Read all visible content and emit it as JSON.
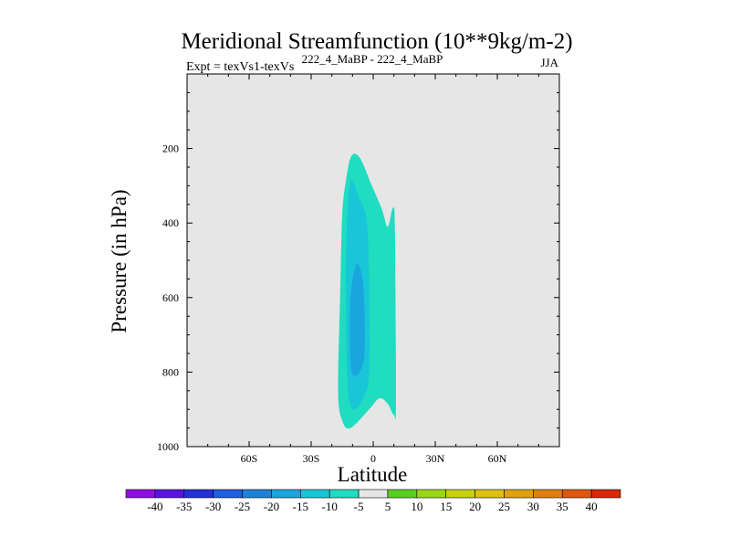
{
  "chart_data": {
    "type": "contour-filled",
    "title": "Meridional Streamfunction (10**9kg/m-2)",
    "subtitle_left": "Expt = texVs1-texVs",
    "subtitle_center": "222_4_MaBP - 222_4_MaBP",
    "season": "JJA",
    "xlabel": "Latitude",
    "ylabel": "Pressure (in hPa)",
    "xlim": [
      -90,
      90
    ],
    "ylim": [
      0,
      1000
    ],
    "y_inverted": true,
    "xticks": [
      {
        "value": -60,
        "label": "60S"
      },
      {
        "value": -30,
        "label": "30S"
      },
      {
        "value": 0,
        "label": "0"
      },
      {
        "value": 30,
        "label": "30N"
      },
      {
        "value": 60,
        "label": "60N"
      }
    ],
    "yticks": [
      {
        "value": 200,
        "label": "200"
      },
      {
        "value": 400,
        "label": "400"
      },
      {
        "value": 600,
        "label": "600"
      },
      {
        "value": 800,
        "label": "800"
      },
      {
        "value": 1000,
        "label": "1000"
      }
    ],
    "background_color": "#e6e6e6",
    "colorbar": {
      "labels": [
        "-40",
        "-35",
        "-30",
        "-25",
        "-20",
        "-15",
        "-10",
        "-5",
        "5",
        "10",
        "15",
        "20",
        "25",
        "30",
        "35",
        "40"
      ],
      "colors": [
        "#8f10e0",
        "#5a14e0",
        "#2430d8",
        "#1e5ee0",
        "#1f82d8",
        "#18a6dc",
        "#18c6d8",
        "#20dcc0",
        "#e6e6e6",
        "#58d020",
        "#98d814",
        "#c8d010",
        "#e0c010",
        "#e0a010",
        "#e08010",
        "#e05810",
        "#d82808"
      ]
    },
    "regions": [
      {
        "name": "-10 to -5",
        "color": "#20dcc0",
        "points": [
          [
            -10.5,
            220
          ],
          [
            -6.5,
            225
          ],
          [
            -1,
            295
          ],
          [
            4,
            360
          ],
          [
            7,
            410
          ],
          [
            9.5,
            360
          ],
          [
            10.5,
            420
          ],
          [
            11,
            880
          ],
          [
            10,
            915
          ],
          [
            7,
            885
          ],
          [
            3,
            870
          ],
          [
            -2,
            900
          ],
          [
            -11,
            950
          ],
          [
            -15,
            930
          ],
          [
            -17,
            850
          ],
          [
            -16,
            600
          ],
          [
            -15,
            380
          ],
          [
            -13,
            280
          ]
        ]
      },
      {
        "name": "-15 to -10",
        "color": "#18c6d8",
        "points": [
          [
            -11,
            290
          ],
          [
            -7,
            330
          ],
          [
            -3,
            400
          ],
          [
            -2,
            600
          ],
          [
            -2,
            800
          ],
          [
            -4,
            860
          ],
          [
            -9,
            900
          ],
          [
            -12,
            860
          ],
          [
            -13,
            700
          ],
          [
            -13,
            450
          ]
        ]
      },
      {
        "name": "-20 to -15",
        "color": "#18a6dc",
        "points": [
          [
            -8,
            510
          ],
          [
            -5,
            560
          ],
          [
            -4,
            700
          ],
          [
            -5,
            780
          ],
          [
            -9,
            810
          ],
          [
            -11,
            770
          ],
          [
            -11,
            600
          ]
        ]
      }
    ]
  }
}
